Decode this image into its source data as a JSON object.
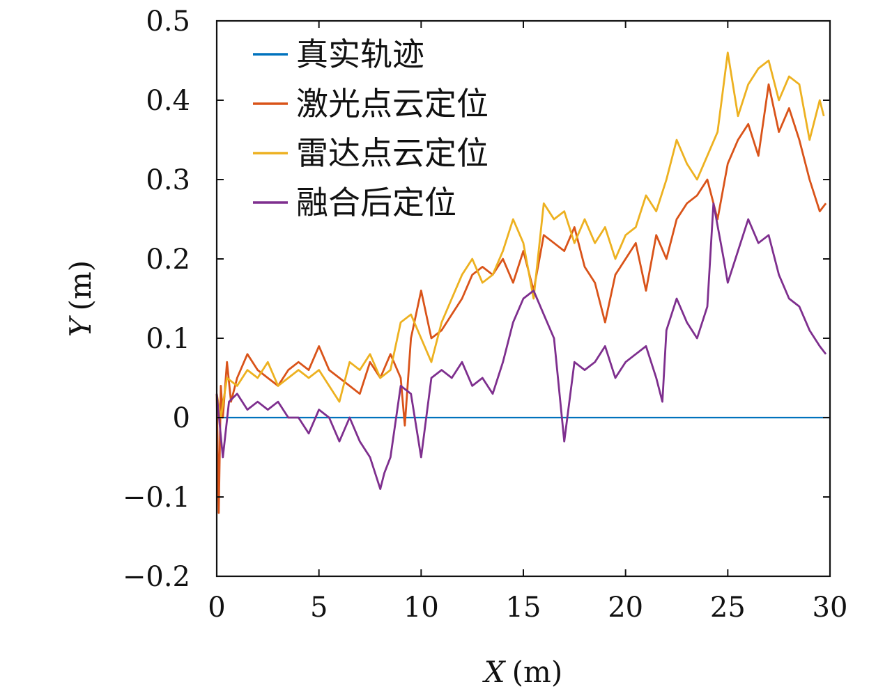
{
  "chart_data": {
    "type": "line",
    "title": "",
    "xlabel": "X (m)",
    "xlabel_var": "X",
    "xlabel_unit": "(m)",
    "ylabel": "Y (m)",
    "ylabel_var": "Y",
    "ylabel_unit": "(m)",
    "xlim": [
      0,
      30
    ],
    "ylim": [
      -0.2,
      0.5
    ],
    "xticks": [
      0,
      5,
      10,
      15,
      20,
      25,
      30
    ],
    "xtick_labels": [
      "0",
      "5",
      "10",
      "15",
      "20",
      "25",
      "30"
    ],
    "yticks": [
      -0.2,
      -0.1,
      0,
      0.1,
      0.2,
      0.3,
      0.4,
      0.5
    ],
    "ytick_labels": [
      "−0.2",
      "−0.1",
      "0",
      "0.1",
      "0.2",
      "0.3",
      "0.4",
      "0.5"
    ],
    "grid": false,
    "legend_position": "top-left",
    "series": [
      {
        "name": "真实轨迹",
        "color": "#0072BD",
        "x": [
          0,
          30
        ],
        "y": [
          0,
          0
        ]
      },
      {
        "name": "激光点云定位",
        "color": "#D95319",
        "x": [
          0,
          0.1,
          0.2,
          0.3,
          0.5,
          0.7,
          1.0,
          1.5,
          2.0,
          2.5,
          3.0,
          3.5,
          4.0,
          4.5,
          5.0,
          5.5,
          6.0,
          6.5,
          7.0,
          7.5,
          8.0,
          8.5,
          9.0,
          9.2,
          9.5,
          10.0,
          10.5,
          11.0,
          11.5,
          12.0,
          12.5,
          13.0,
          13.5,
          14.0,
          14.5,
          15.0,
          15.5,
          16.0,
          16.5,
          17.0,
          17.5,
          18.0,
          18.5,
          19.0,
          19.5,
          20.0,
          20.5,
          21.0,
          21.5,
          22.0,
          22.5,
          23.0,
          23.5,
          24.0,
          24.5,
          25.0,
          25.5,
          26.0,
          26.5,
          27.0,
          27.5,
          28.0,
          28.5,
          29.0,
          29.5,
          29.8
        ],
        "y": [
          0.03,
          -0.12,
          0.04,
          0.0,
          0.07,
          0.02,
          0.05,
          0.08,
          0.06,
          0.05,
          0.04,
          0.06,
          0.07,
          0.06,
          0.09,
          0.06,
          0.05,
          0.04,
          0.03,
          0.07,
          0.05,
          0.08,
          0.05,
          -0.01,
          0.1,
          0.16,
          0.1,
          0.11,
          0.13,
          0.15,
          0.18,
          0.19,
          0.18,
          0.2,
          0.17,
          0.21,
          0.16,
          0.23,
          0.22,
          0.21,
          0.24,
          0.19,
          0.17,
          0.12,
          0.18,
          0.2,
          0.22,
          0.16,
          0.23,
          0.2,
          0.25,
          0.27,
          0.28,
          0.3,
          0.25,
          0.32,
          0.35,
          0.37,
          0.33,
          0.42,
          0.36,
          0.39,
          0.35,
          0.3,
          0.26,
          0.27
        ]
      },
      {
        "name": "雷达点云定位",
        "color": "#EDB120",
        "x": [
          0,
          0.2,
          0.5,
          1.0,
          1.5,
          2.0,
          2.5,
          3.0,
          3.5,
          4.0,
          4.5,
          5.0,
          5.5,
          6.0,
          6.5,
          7.0,
          7.5,
          8.0,
          8.5,
          9.0,
          9.5,
          10.0,
          10.5,
          11.0,
          11.5,
          12.0,
          12.5,
          13.0,
          13.5,
          14.0,
          14.5,
          15.0,
          15.5,
          16.0,
          16.5,
          17.0,
          17.5,
          18.0,
          18.5,
          19.0,
          19.5,
          20.0,
          20.5,
          21.0,
          21.5,
          22.0,
          22.5,
          23.0,
          23.5,
          24.0,
          24.5,
          25.0,
          25.5,
          26.0,
          26.5,
          27.0,
          27.5,
          28.0,
          28.5,
          29.0,
          29.5,
          29.7
        ],
        "y": [
          0.03,
          0.0,
          0.05,
          0.04,
          0.06,
          0.05,
          0.07,
          0.04,
          0.05,
          0.06,
          0.05,
          0.06,
          0.04,
          0.02,
          0.07,
          0.06,
          0.08,
          0.05,
          0.06,
          0.12,
          0.13,
          0.1,
          0.07,
          0.12,
          0.15,
          0.18,
          0.2,
          0.17,
          0.18,
          0.21,
          0.25,
          0.22,
          0.15,
          0.27,
          0.25,
          0.26,
          0.22,
          0.25,
          0.22,
          0.24,
          0.2,
          0.23,
          0.24,
          0.28,
          0.26,
          0.3,
          0.35,
          0.32,
          0.3,
          0.33,
          0.36,
          0.46,
          0.38,
          0.42,
          0.44,
          0.45,
          0.4,
          0.43,
          0.42,
          0.35,
          0.4,
          0.38
        ]
      },
      {
        "name": "融合后定位",
        "color": "#7E2F8E",
        "x": [
          0,
          0.3,
          0.6,
          1.0,
          1.5,
          2.0,
          2.5,
          3.0,
          3.5,
          4.0,
          4.5,
          5.0,
          5.5,
          6.0,
          6.5,
          7.0,
          7.5,
          8.0,
          8.2,
          8.5,
          9.0,
          9.5,
          10.0,
          10.5,
          11.0,
          11.5,
          12.0,
          12.5,
          13.0,
          13.5,
          14.0,
          14.5,
          15.0,
          15.5,
          16.0,
          16.5,
          17.0,
          17.5,
          18.0,
          18.5,
          19.0,
          19.5,
          20.0,
          20.5,
          21.0,
          21.5,
          21.8,
          22.0,
          22.5,
          23.0,
          23.5,
          24.0,
          24.3,
          24.8,
          25.0,
          25.5,
          26.0,
          26.5,
          27.0,
          27.5,
          28.0,
          28.5,
          29.0,
          29.5,
          29.8
        ],
        "y": [
          0.03,
          -0.05,
          0.02,
          0.03,
          0.01,
          0.02,
          0.01,
          0.02,
          0.0,
          0.0,
          -0.02,
          0.01,
          0.0,
          -0.03,
          0.0,
          -0.03,
          -0.05,
          -0.09,
          -0.07,
          -0.05,
          0.04,
          0.03,
          -0.05,
          0.05,
          0.06,
          0.05,
          0.07,
          0.04,
          0.05,
          0.03,
          0.07,
          0.12,
          0.15,
          0.16,
          0.13,
          0.1,
          -0.03,
          0.07,
          0.06,
          0.07,
          0.09,
          0.05,
          0.07,
          0.08,
          0.09,
          0.05,
          0.02,
          0.11,
          0.15,
          0.12,
          0.1,
          0.14,
          0.27,
          0.2,
          0.17,
          0.21,
          0.25,
          0.22,
          0.23,
          0.18,
          0.15,
          0.14,
          0.11,
          0.09,
          0.08
        ]
      }
    ]
  }
}
